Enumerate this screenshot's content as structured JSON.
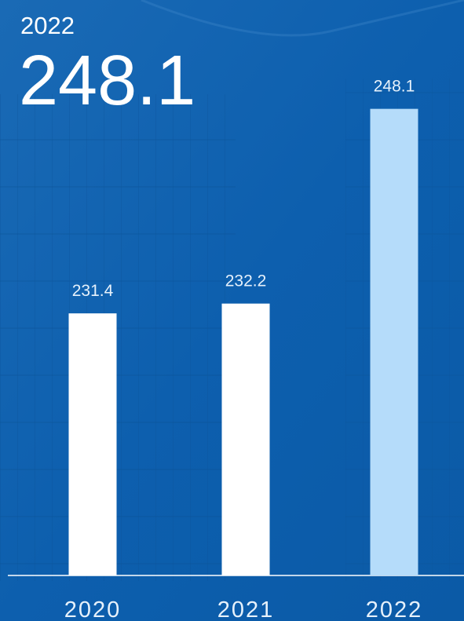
{
  "chart_data": {
    "type": "bar",
    "categories": [
      "2020",
      "2021",
      "2022"
    ],
    "values": [
      231.4,
      232.2,
      248.1
    ],
    "colors": [
      "#ffffff",
      "#ffffff",
      "#b5dcfa"
    ],
    "ylim": [
      210,
      250
    ]
  }
}
